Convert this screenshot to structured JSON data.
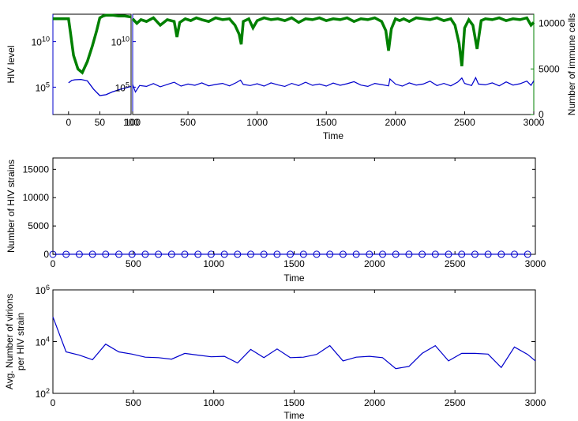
{
  "chart_data": [
    {
      "type": "line",
      "panel": "top-left inset (early phase)",
      "ylabel": "HIV level",
      "yscale": "log",
      "ytick_labels": [
        {
          "base": "10",
          "exp": "5"
        },
        {
          "base": "10",
          "exp": "10"
        }
      ],
      "right_ytick_labels": [
        "0",
        "5000",
        "10000"
      ],
      "xticks": [
        "0",
        "50",
        "100"
      ],
      "xlim": [
        -25,
        100
      ],
      "y2lim": [
        0,
        11000
      ],
      "series": [
        {
          "color": "#0000cc",
          "axis": "left",
          "x": [
            0,
            5,
            10,
            20,
            30,
            40,
            50,
            60,
            70,
            80,
            90,
            100
          ],
          "y": [
            300000.0,
            550000.0,
            650000.0,
            700000.0,
            500000.0,
            60000.0,
            12000.0,
            15000.0,
            30000.0,
            50000.0,
            80000.0,
            120000.0
          ]
        },
        {
          "color": "#008000",
          "axis": "right",
          "x": [
            -25,
            0,
            3,
            8,
            15,
            22,
            30,
            38,
            45,
            50,
            55,
            60,
            70,
            80,
            90,
            100
          ],
          "y": [
            10500,
            10500,
            9000,
            6500,
            5000,
            4600,
            5800,
            7500,
            9200,
            10600,
            10800,
            10900,
            10900,
            10800,
            10800,
            10700
          ]
        }
      ]
    },
    {
      "type": "line",
      "panel": "top-right (long-term)",
      "xlabel": "Time",
      "xticks": [
        "100",
        "500",
        "1000",
        "1500",
        "2000",
        "2500",
        "3000"
      ],
      "xlim": [
        100,
        3000
      ],
      "yscale": "log",
      "ytick_labels": [
        {
          "base": "10",
          "exp": "5"
        },
        {
          "base": "10",
          "exp": "10"
        }
      ],
      "right_ylabel": "Number of immune cells",
      "right_yticks": [
        "0",
        "5000",
        "10000"
      ],
      "y2lim": [
        0,
        11000
      ],
      "series": [
        {
          "color": "#0000cc",
          "axis": "left",
          "x": [
            100,
            120,
            150,
            200,
            250,
            300,
            350,
            400,
            450,
            500,
            550,
            600,
            650,
            700,
            750,
            800,
            850,
            880,
            900,
            950,
            1000,
            1050,
            1100,
            1150,
            1200,
            1250,
            1300,
            1350,
            1400,
            1450,
            1500,
            1550,
            1600,
            1650,
            1700,
            1750,
            1800,
            1850,
            1900,
            1950,
            1960,
            2000,
            2050,
            2100,
            2150,
            2200,
            2250,
            2300,
            2350,
            2400,
            2450,
            2480,
            2500,
            2550,
            2580,
            2600,
            2650,
            2700,
            2750,
            2800,
            2850,
            2900,
            2950,
            2980,
            3000
          ],
          "y": [
            200000.0,
            30000.0,
            150000.0,
            120000.0,
            250000.0,
            110000.0,
            200000.0,
            350000.0,
            130000.0,
            220000.0,
            160000.0,
            300000.0,
            140000.0,
            200000.0,
            260000.0,
            140000.0,
            320000.0,
            600000.0,
            200000.0,
            150000.0,
            240000.0,
            130000.0,
            300000.0,
            180000.0,
            120000.0,
            260000.0,
            150000.0,
            350000.0,
            160000.0,
            220000.0,
            130000.0,
            280000.0,
            160000.0,
            240000.0,
            400000.0,
            170000.0,
            120000.0,
            260000.0,
            190000.0,
            140000.0,
            800000.0,
            220000.0,
            130000.0,
            300000.0,
            170000.0,
            220000.0,
            450000.0,
            150000.0,
            260000.0,
            140000.0,
            360000.0,
            1000000.0,
            260000.0,
            150000.0,
            1100000.0,
            220000.0,
            180000.0,
            300000.0,
            140000.0,
            380000.0,
            170000.0,
            240000.0,
            460000.0,
            160000.0,
            500000.0
          ]
        },
        {
          "color": "#008000",
          "axis": "right",
          "x": [
            100,
            130,
            160,
            200,
            250,
            300,
            350,
            400,
            420,
            440,
            480,
            520,
            560,
            600,
            650,
            700,
            750,
            800,
            840,
            870,
            885,
            900,
            940,
            970,
            1000,
            1050,
            1100,
            1150,
            1200,
            1250,
            1300,
            1350,
            1400,
            1450,
            1500,
            1550,
            1600,
            1650,
            1700,
            1750,
            1800,
            1850,
            1900,
            1930,
            1950,
            1970,
            2000,
            2030,
            2060,
            2100,
            2150,
            2200,
            2250,
            2300,
            2350,
            2400,
            2430,
            2460,
            2480,
            2500,
            2530,
            2560,
            2590,
            2620,
            2650,
            2700,
            2750,
            2800,
            2850,
            2900,
            2950,
            2980,
            3000
          ],
          "y": [
            10500,
            10000,
            10400,
            10200,
            10600,
            9800,
            10400,
            10200,
            8500,
            10100,
            10500,
            10300,
            10600,
            10400,
            10200,
            10600,
            10400,
            10500,
            9800,
            8800,
            7700,
            10200,
            10500,
            9500,
            10300,
            10600,
            10400,
            10500,
            10300,
            10600,
            10100,
            10500,
            10400,
            10600,
            10300,
            10500,
            10400,
            10600,
            10200,
            10500,
            10400,
            10600,
            10200,
            9200,
            7000,
            9400,
            10500,
            10300,
            10500,
            10200,
            10600,
            10500,
            10400,
            10600,
            10300,
            10500,
            9800,
            7800,
            5300,
            9500,
            10400,
            9800,
            7200,
            10300,
            10500,
            10400,
            10600,
            10300,
            10500,
            10400,
            10600,
            9800,
            10100
          ]
        }
      ]
    },
    {
      "type": "line",
      "panel": "middle",
      "xlabel": "Time",
      "ylabel": "Number of  HIV strains",
      "xticks": [
        "0",
        "500",
        "1000",
        "1500",
        "2000",
        "2500",
        "3000"
      ],
      "yticks": [
        "0",
        "5000",
        "10000",
        "15000"
      ],
      "xlim": [
        0,
        3000
      ],
      "ylim": [
        0,
        17000
      ],
      "series": [
        {
          "color": "#0000cc",
          "marker": "circle",
          "x": [
            0,
            82,
            164,
            246,
            328,
            410,
            492,
            574,
            656,
            738,
            820,
            902,
            984,
            1066,
            1148,
            1230,
            1312,
            1394,
            1476,
            1558,
            1640,
            1722,
            1804,
            1886,
            1968,
            2050,
            2132,
            2214,
            2296,
            2378,
            2460,
            2542,
            2624,
            2706,
            2788,
            2870,
            2952
          ],
          "y": [
            5,
            8,
            9,
            9,
            10,
            10,
            10,
            11,
            10,
            10,
            11,
            10,
            10,
            11,
            10,
            10,
            11,
            10,
            10,
            11,
            10,
            10,
            11,
            10,
            10,
            11,
            10,
            10,
            11,
            10,
            10,
            11,
            10,
            10,
            11,
            10,
            10
          ]
        }
      ]
    },
    {
      "type": "line",
      "panel": "bottom",
      "xlabel": "Time",
      "ylabel_lines": [
        "Avg. Number of virions",
        "per HIV strain"
      ],
      "yscale": "log",
      "xticks": [
        "0",
        "500",
        "1000",
        "1500",
        "2000",
        "2500",
        "3000"
      ],
      "ytick_labels": [
        {
          "base": "10",
          "exp": "2"
        },
        {
          "base": "10",
          "exp": "4"
        },
        {
          "base": "10",
          "exp": "6"
        }
      ],
      "xlim": [
        0,
        3000
      ],
      "ylim": [
        100,
        1000000
      ],
      "series": [
        {
          "color": "#0000cc",
          "x": [
            0,
            82,
            164,
            246,
            328,
            410,
            492,
            574,
            656,
            738,
            820,
            902,
            984,
            1066,
            1148,
            1230,
            1312,
            1394,
            1476,
            1558,
            1640,
            1722,
            1804,
            1886,
            1968,
            2050,
            2132,
            2214,
            2296,
            2378,
            2460,
            2542,
            2624,
            2706,
            2788,
            2870,
            2952,
            3000
          ],
          "y": [
            90000,
            4000,
            3000,
            2000,
            8000,
            4000,
            3300,
            2500,
            2400,
            2100,
            3500,
            3000,
            2600,
            2700,
            1500,
            5000,
            2400,
            5200,
            2400,
            2500,
            3200,
            7000,
            1800,
            2500,
            2700,
            2400,
            900,
            1100,
            3500,
            7000,
            1800,
            3500,
            3500,
            3300,
            1000,
            6200,
            3200,
            1800
          ]
        }
      ]
    }
  ]
}
